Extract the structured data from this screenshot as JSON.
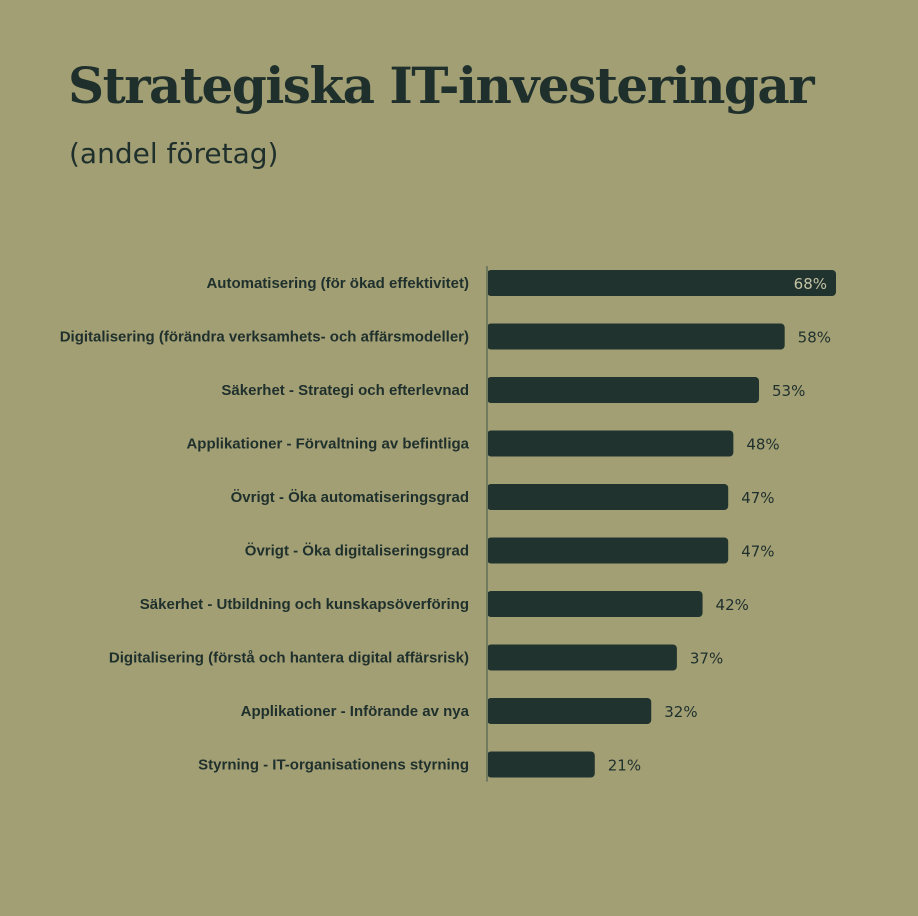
{
  "header": {
    "title": "Strategiska IT-investeringar",
    "subtitle": "(andel företag)"
  },
  "colors": {
    "background": "#a29f75",
    "bar": "#21332e",
    "text": "#1f302c",
    "inside_label": "#c4c2a4",
    "axis": "#6f7a5f"
  },
  "chart_data": {
    "type": "bar",
    "orientation": "horizontal",
    "categories": [
      "Automatisering (för ökad effektivitet)",
      "Digitalisering (förändra verksamhets- och affärsmodeller)",
      "Säkerhet - Strategi och efterlevnad",
      "Applikationer - Förvaltning av befintliga",
      "Övrigt - Öka automatiseringsgrad",
      "Övrigt - Öka digitaliseringsgrad",
      "Säkerhet - Utbildning och kunskapsöverföring",
      "Digitalisering (förstå och hantera digital affärsrisk)",
      "Applikationer - Införande av nya",
      "Styrning - IT-organisationens styrning"
    ],
    "values": [
      68,
      58,
      53,
      48,
      47,
      47,
      42,
      37,
      32,
      21
    ],
    "value_labels": [
      "68%",
      "58%",
      "53%",
      "48%",
      "47%",
      "47%",
      "42%",
      "37%",
      "32%",
      "21%"
    ],
    "title": "Strategiska IT-investeringar",
    "subtitle": "(andel företag)",
    "xlim": [
      0,
      68
    ],
    "grid": false,
    "legend": "none"
  }
}
